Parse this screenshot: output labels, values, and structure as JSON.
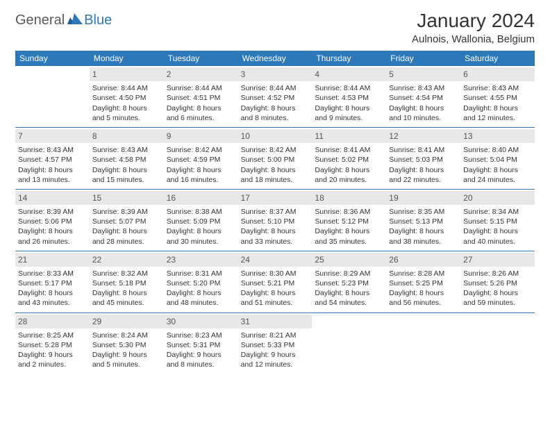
{
  "logo": {
    "general": "General",
    "blue": "Blue"
  },
  "title": "January 2024",
  "location": "Aulnois, Wallonia, Belgium",
  "style": {
    "header_bg": "#2d78b9",
    "header_fg": "#ffffff",
    "daynum_bg": "#e8e8e8",
    "daynum_fg": "#555555",
    "border_color": "#2d78b9",
    "body_font_size": 10.5,
    "title_font_size": 28,
    "location_font_size": 15,
    "header_font_size": 12
  },
  "weekdays": [
    "Sunday",
    "Monday",
    "Tuesday",
    "Wednesday",
    "Thursday",
    "Friday",
    "Saturday"
  ],
  "weeks": [
    [
      {
        "day": "",
        "lines": [
          "",
          "",
          "",
          ""
        ]
      },
      {
        "day": "1",
        "lines": [
          "Sunrise: 8:44 AM",
          "Sunset: 4:50 PM",
          "Daylight: 8 hours",
          "and 5 minutes."
        ]
      },
      {
        "day": "2",
        "lines": [
          "Sunrise: 8:44 AM",
          "Sunset: 4:51 PM",
          "Daylight: 8 hours",
          "and 6 minutes."
        ]
      },
      {
        "day": "3",
        "lines": [
          "Sunrise: 8:44 AM",
          "Sunset: 4:52 PM",
          "Daylight: 8 hours",
          "and 8 minutes."
        ]
      },
      {
        "day": "4",
        "lines": [
          "Sunrise: 8:44 AM",
          "Sunset: 4:53 PM",
          "Daylight: 8 hours",
          "and 9 minutes."
        ]
      },
      {
        "day": "5",
        "lines": [
          "Sunrise: 8:43 AM",
          "Sunset: 4:54 PM",
          "Daylight: 8 hours",
          "and 10 minutes."
        ]
      },
      {
        "day": "6",
        "lines": [
          "Sunrise: 8:43 AM",
          "Sunset: 4:55 PM",
          "Daylight: 8 hours",
          "and 12 minutes."
        ]
      }
    ],
    [
      {
        "day": "7",
        "lines": [
          "Sunrise: 8:43 AM",
          "Sunset: 4:57 PM",
          "Daylight: 8 hours",
          "and 13 minutes."
        ]
      },
      {
        "day": "8",
        "lines": [
          "Sunrise: 8:43 AM",
          "Sunset: 4:58 PM",
          "Daylight: 8 hours",
          "and 15 minutes."
        ]
      },
      {
        "day": "9",
        "lines": [
          "Sunrise: 8:42 AM",
          "Sunset: 4:59 PM",
          "Daylight: 8 hours",
          "and 16 minutes."
        ]
      },
      {
        "day": "10",
        "lines": [
          "Sunrise: 8:42 AM",
          "Sunset: 5:00 PM",
          "Daylight: 8 hours",
          "and 18 minutes."
        ]
      },
      {
        "day": "11",
        "lines": [
          "Sunrise: 8:41 AM",
          "Sunset: 5:02 PM",
          "Daylight: 8 hours",
          "and 20 minutes."
        ]
      },
      {
        "day": "12",
        "lines": [
          "Sunrise: 8:41 AM",
          "Sunset: 5:03 PM",
          "Daylight: 8 hours",
          "and 22 minutes."
        ]
      },
      {
        "day": "13",
        "lines": [
          "Sunrise: 8:40 AM",
          "Sunset: 5:04 PM",
          "Daylight: 8 hours",
          "and 24 minutes."
        ]
      }
    ],
    [
      {
        "day": "14",
        "lines": [
          "Sunrise: 8:39 AM",
          "Sunset: 5:06 PM",
          "Daylight: 8 hours",
          "and 26 minutes."
        ]
      },
      {
        "day": "15",
        "lines": [
          "Sunrise: 8:39 AM",
          "Sunset: 5:07 PM",
          "Daylight: 8 hours",
          "and 28 minutes."
        ]
      },
      {
        "day": "16",
        "lines": [
          "Sunrise: 8:38 AM",
          "Sunset: 5:09 PM",
          "Daylight: 8 hours",
          "and 30 minutes."
        ]
      },
      {
        "day": "17",
        "lines": [
          "Sunrise: 8:37 AM",
          "Sunset: 5:10 PM",
          "Daylight: 8 hours",
          "and 33 minutes."
        ]
      },
      {
        "day": "18",
        "lines": [
          "Sunrise: 8:36 AM",
          "Sunset: 5:12 PM",
          "Daylight: 8 hours",
          "and 35 minutes."
        ]
      },
      {
        "day": "19",
        "lines": [
          "Sunrise: 8:35 AM",
          "Sunset: 5:13 PM",
          "Daylight: 8 hours",
          "and 38 minutes."
        ]
      },
      {
        "day": "20",
        "lines": [
          "Sunrise: 8:34 AM",
          "Sunset: 5:15 PM",
          "Daylight: 8 hours",
          "and 40 minutes."
        ]
      }
    ],
    [
      {
        "day": "21",
        "lines": [
          "Sunrise: 8:33 AM",
          "Sunset: 5:17 PM",
          "Daylight: 8 hours",
          "and 43 minutes."
        ]
      },
      {
        "day": "22",
        "lines": [
          "Sunrise: 8:32 AM",
          "Sunset: 5:18 PM",
          "Daylight: 8 hours",
          "and 45 minutes."
        ]
      },
      {
        "day": "23",
        "lines": [
          "Sunrise: 8:31 AM",
          "Sunset: 5:20 PM",
          "Daylight: 8 hours",
          "and 48 minutes."
        ]
      },
      {
        "day": "24",
        "lines": [
          "Sunrise: 8:30 AM",
          "Sunset: 5:21 PM",
          "Daylight: 8 hours",
          "and 51 minutes."
        ]
      },
      {
        "day": "25",
        "lines": [
          "Sunrise: 8:29 AM",
          "Sunset: 5:23 PM",
          "Daylight: 8 hours",
          "and 54 minutes."
        ]
      },
      {
        "day": "26",
        "lines": [
          "Sunrise: 8:28 AM",
          "Sunset: 5:25 PM",
          "Daylight: 8 hours",
          "and 56 minutes."
        ]
      },
      {
        "day": "27",
        "lines": [
          "Sunrise: 8:26 AM",
          "Sunset: 5:26 PM",
          "Daylight: 8 hours",
          "and 59 minutes."
        ]
      }
    ],
    [
      {
        "day": "28",
        "lines": [
          "Sunrise: 8:25 AM",
          "Sunset: 5:28 PM",
          "Daylight: 9 hours",
          "and 2 minutes."
        ]
      },
      {
        "day": "29",
        "lines": [
          "Sunrise: 8:24 AM",
          "Sunset: 5:30 PM",
          "Daylight: 9 hours",
          "and 5 minutes."
        ]
      },
      {
        "day": "30",
        "lines": [
          "Sunrise: 8:23 AM",
          "Sunset: 5:31 PM",
          "Daylight: 9 hours",
          "and 8 minutes."
        ]
      },
      {
        "day": "31",
        "lines": [
          "Sunrise: 8:21 AM",
          "Sunset: 5:33 PM",
          "Daylight: 9 hours",
          "and 12 minutes."
        ]
      },
      {
        "day": "",
        "lines": [
          "",
          "",
          "",
          ""
        ]
      },
      {
        "day": "",
        "lines": [
          "",
          "",
          "",
          ""
        ]
      },
      {
        "day": "",
        "lines": [
          "",
          "",
          "",
          ""
        ]
      }
    ]
  ]
}
